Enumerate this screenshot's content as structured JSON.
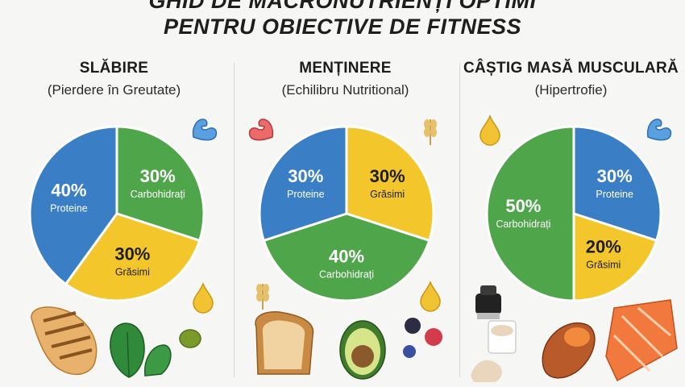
{
  "header": {
    "title_line1": "GHID DE MACRONUTRIENȚI OPTIMI",
    "title_line2": "PENTRU OBIECTIVE DE FITNESS"
  },
  "colors": {
    "proteine": "#3a7fc6",
    "carbohidrati": "#4fa64a",
    "grasimi": "#f3c62c"
  },
  "chart_data": [
    {
      "type": "pie",
      "title": "SLĂBIRE",
      "subtitle": "(Pierdere în Greutate)",
      "slices": [
        {
          "label": "Carbohidrați",
          "value": 30,
          "value_label": "30%",
          "color": "#4fa64a"
        },
        {
          "label": "Grăsimi",
          "value": 30,
          "value_label": "30%",
          "color": "#f3c62c"
        },
        {
          "label": "Proteine",
          "value": 40,
          "value_label": "40%",
          "color": "#3a7fc6"
        }
      ]
    },
    {
      "type": "pie",
      "title": "MENȚINERE",
      "subtitle": "(Echilibru Nutritional)",
      "slices": [
        {
          "label": "Grăsimi",
          "value": 30,
          "value_label": "30%",
          "color": "#f3c62c"
        },
        {
          "label": "Carbohidrați",
          "value": 40,
          "value_label": "40%",
          "color": "#4fa64a"
        },
        {
          "label": "Proteine",
          "value": 30,
          "value_label": "30%",
          "color": "#3a7fc6"
        }
      ]
    },
    {
      "type": "pie",
      "title": "CÂȘTIG MASĂ MUSCULARĂ",
      "subtitle": "(Hipertrofie)",
      "slices": [
        {
          "label": "Proteine",
          "value": 30,
          "value_label": "30%",
          "color": "#3a7fc6"
        },
        {
          "label": "Grăsimi",
          "value": 20,
          "value_label": "20%",
          "color": "#f3c62c"
        },
        {
          "label": "Carbohidrați",
          "value": 50,
          "value_label": "50%",
          "color": "#4fa64a"
        }
      ]
    }
  ],
  "icons": {
    "column1": [
      "bicep-icon",
      "oil-drop-icon",
      "grilled-chicken-icon",
      "spinach-icon",
      "olive-icon"
    ],
    "column2": [
      "bicep-icon",
      "wheat-icon",
      "bread-icon",
      "avocado-icon",
      "berries-icon"
    ],
    "column3": [
      "oil-drop-icon",
      "bicep-icon",
      "shaker-icon",
      "protein-powder-icon",
      "sweet-potato-icon",
      "salmon-icon"
    ]
  }
}
